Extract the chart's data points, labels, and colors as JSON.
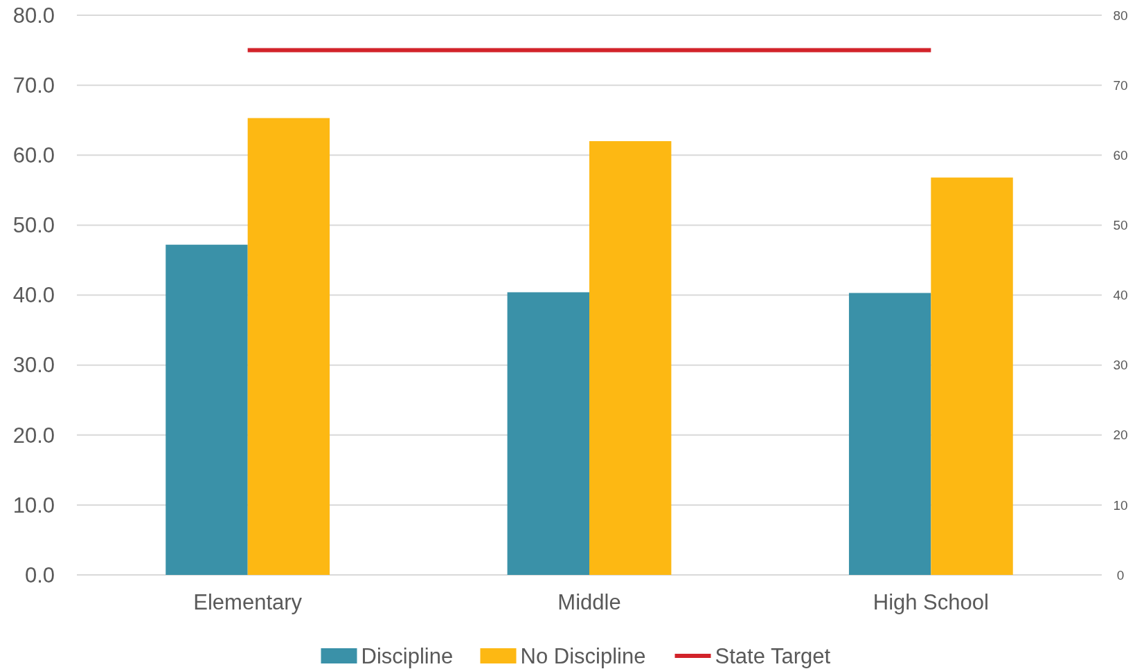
{
  "chart_data": {
    "type": "bar",
    "categories": [
      "Elementary",
      "Middle",
      "High School"
    ],
    "series": [
      {
        "name": "Discipline",
        "color": "#3a91a8",
        "values": [
          47.2,
          40.4,
          40.3
        ]
      },
      {
        "name": "No Discipline",
        "color": "#fdb813",
        "values": [
          65.3,
          62.0,
          56.8
        ]
      },
      {
        "name": "State Target",
        "type": "line",
        "axis": "y2",
        "color": "#d2232a",
        "values": [
          75,
          75,
          75
        ]
      }
    ],
    "ylim": [
      0,
      80
    ],
    "yticks": [
      {
        "value": 0,
        "label": "0.0"
      },
      {
        "value": 10,
        "label": "10.0"
      },
      {
        "value": 20,
        "label": "20.0"
      },
      {
        "value": 30,
        "label": "30.0"
      },
      {
        "value": 40,
        "label": "40.0"
      },
      {
        "value": 50,
        "label": "50.0"
      },
      {
        "value": 60,
        "label": "60.0"
      },
      {
        "value": 70,
        "label": "70.0"
      },
      {
        "value": 80,
        "label": "80.0"
      }
    ],
    "y2lim": [
      0,
      80
    ],
    "y2ticks": [
      0,
      10,
      20,
      30,
      40,
      50,
      60,
      70,
      80
    ],
    "grid": "y",
    "legend": "bottom",
    "line_style": "solid"
  }
}
